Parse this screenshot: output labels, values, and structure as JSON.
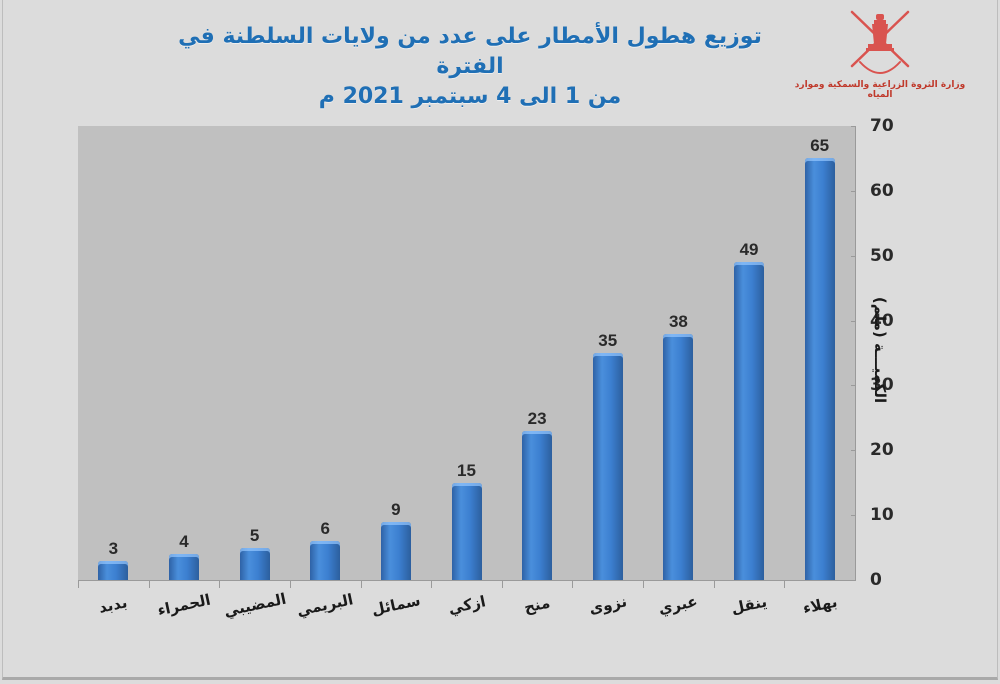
{
  "header": {
    "title_line1": "توزيع هطول الأمطار على عدد من ولايات السلطنة في الفترة",
    "title_line2": "من 1 الى 4 سبتمبر 2021 م",
    "title_color": "#1f6fb5",
    "logo_caption": "وزارة الثروة الزراعية والسمكية وموارد المياه",
    "logo_color": "#c0392b"
  },
  "chart_data": {
    "type": "bar",
    "title": "توزيع هطول الأمطار على عدد من ولايات السلطنة في الفترة من 1 الى 4 سبتمبر 2021 م",
    "xlabel": "",
    "ylabel": "الكميـــة (ملم)",
    "ylim": [
      0,
      70
    ],
    "yticks": [
      0,
      10,
      20,
      30,
      40,
      50,
      60,
      70
    ],
    "direction": "rtl",
    "y_axis_position": "right",
    "grid": false,
    "legend": null,
    "categories": [
      "بهلاء",
      "ينقل",
      "عبري",
      "نزوى",
      "منح",
      "ازكي",
      "سمائل",
      "البريمي",
      "المضيبي",
      "الحمراء",
      "بدبد"
    ],
    "values": [
      65,
      49,
      38,
      35,
      23,
      15,
      9,
      6,
      5,
      4,
      3
    ],
    "bar_color": "#3b7dcc",
    "plot_background": "#c0c0c0",
    "data_labels": true
  }
}
